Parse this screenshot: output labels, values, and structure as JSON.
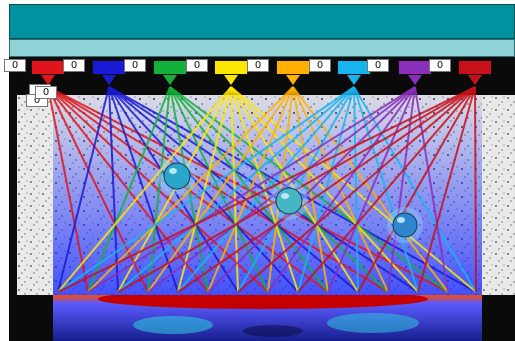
{
  "colors": {
    "header_primary": "#00929e",
    "header_secondary": "#8fd3d6",
    "frame": "#0a0a0a",
    "field_wash": "#3b4fd8"
  },
  "emitters": [
    {
      "name": "red",
      "color": "#e0141b",
      "counter": "0"
    },
    {
      "name": "blue",
      "color": "#1a1ad6",
      "counter": "0"
    },
    {
      "name": "green",
      "color": "#13b13a",
      "counter": "0"
    },
    {
      "name": "yellow",
      "color": "#ffe600",
      "counter": "0"
    },
    {
      "name": "orange",
      "color": "#ffb000",
      "counter": "0"
    },
    {
      "name": "sky",
      "color": "#16b5f0",
      "counter": "0"
    },
    {
      "name": "purple",
      "color": "#8b2fb8",
      "counter": "0"
    },
    {
      "name": "crimson",
      "color": "#c8101a",
      "counter": "0"
    }
  ],
  "side_counters": [
    "0",
    "0",
    "0"
  ],
  "orbs": [
    {
      "name": "orb-left",
      "color": "#2aa6c8"
    },
    {
      "name": "orb-center",
      "color": "#46b6c4"
    },
    {
      "name": "orb-right",
      "color": "#2f86cf"
    }
  ]
}
